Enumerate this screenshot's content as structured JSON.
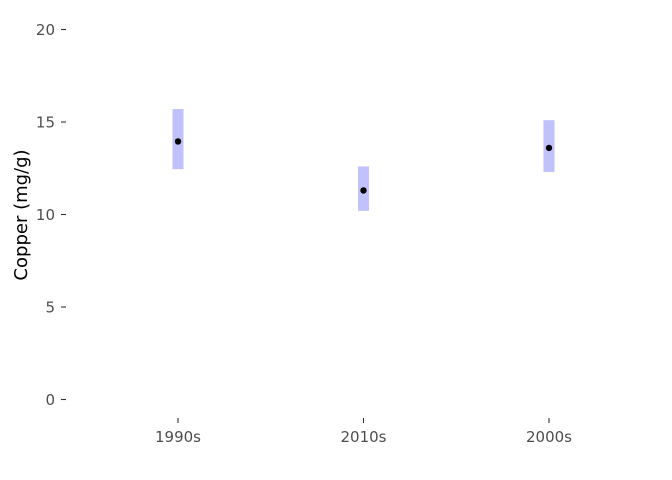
{
  "chart_data": {
    "type": "scatter",
    "title": "",
    "xlabel": "",
    "ylabel": "Copper (mg/g)",
    "categories": [
      "1990s",
      "2010s",
      "2000s"
    ],
    "values": [
      13.95,
      11.3,
      13.6
    ],
    "ranges": [
      [
        12.45,
        15.7
      ],
      [
        10.2,
        12.6
      ],
      [
        12.3,
        15.1
      ]
    ],
    "ylim": [
      0,
      20
    ],
    "yticks": [
      0,
      5,
      10,
      15,
      20
    ],
    "grid": false,
    "legend": "none",
    "colors": {
      "point": "#000000",
      "range": "#c1c1fb",
      "tick": "#333333"
    }
  }
}
